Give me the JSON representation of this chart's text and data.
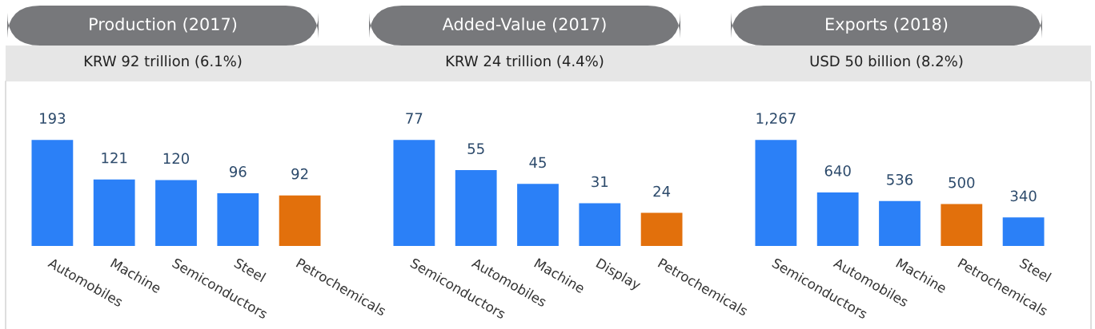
{
  "chart_data": [
    {
      "type": "bar",
      "title": "Production (2017)",
      "subtitle": "KRW 92 trillion (6.1%)",
      "categories": [
        "Automobiles",
        "Machine",
        "Semiconductors",
        "Steel",
        "Petrochemicals"
      ],
      "values": [
        193,
        121,
        120,
        96,
        92
      ],
      "colors": [
        "#2b80f7",
        "#2b80f7",
        "#2b80f7",
        "#2b80f7",
        "#e2700c"
      ],
      "data_labels": true,
      "value_labels": [
        "193",
        "121",
        "120",
        "96",
        "92"
      ]
    },
    {
      "type": "bar",
      "title": "Added-Value (2017)",
      "subtitle": "KRW 24 trillion (4.4%)",
      "categories": [
        "Semiconductors",
        "Automobiles",
        "Machine",
        "Display",
        "Petrochemicals"
      ],
      "values": [
        77,
        55,
        45,
        31,
        24
      ],
      "colors": [
        "#2b80f7",
        "#2b80f7",
        "#2b80f7",
        "#2b80f7",
        "#e2700c"
      ],
      "data_labels": true,
      "value_labels": [
        "77",
        "55",
        "45",
        "31",
        "24"
      ]
    },
    {
      "type": "bar",
      "title": "Exports (2018)",
      "subtitle": "USD 50 billion (8.2%)",
      "categories": [
        "Semiconductors",
        "Automobiles",
        "Machine",
        "Petrochemicals",
        "Steel"
      ],
      "values": [
        1267,
        640,
        536,
        500,
        340
      ],
      "colors": [
        "#2b80f7",
        "#2b80f7",
        "#2b80f7",
        "#e2700c",
        "#2b80f7"
      ],
      "data_labels": true,
      "value_labels": [
        "1,267",
        "640",
        "536",
        "500",
        "340"
      ]
    }
  ]
}
